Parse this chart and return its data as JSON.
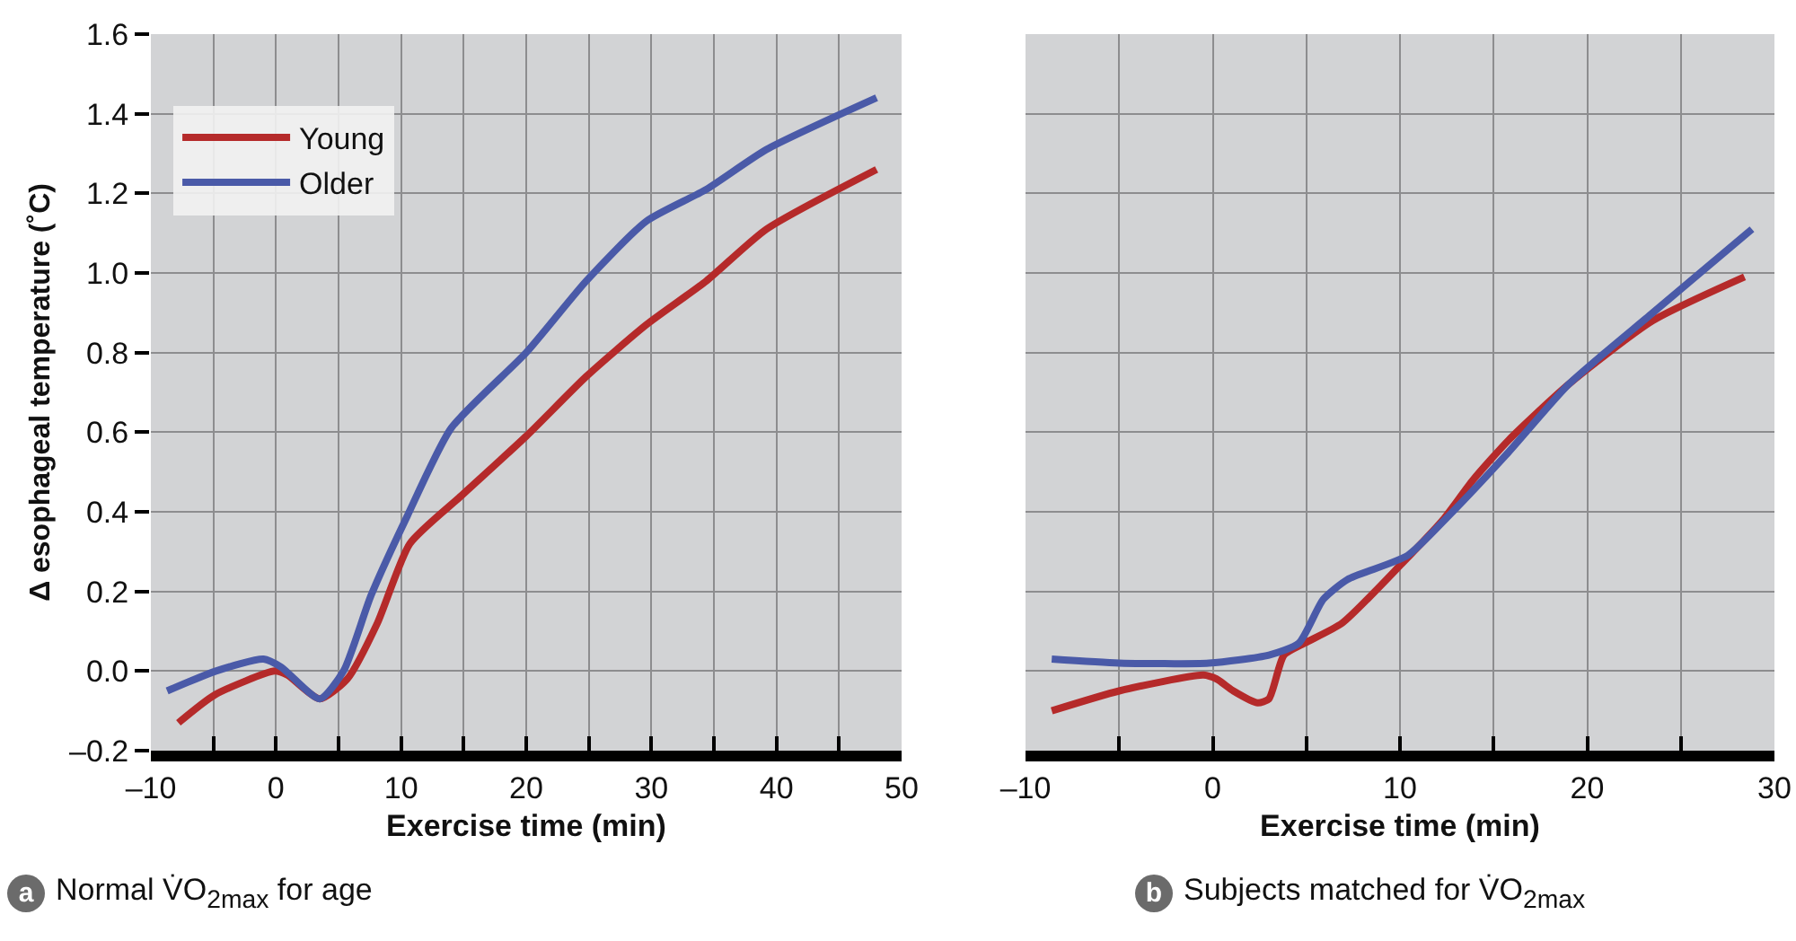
{
  "chart_data": [
    {
      "type": "line",
      "xlabel": "Exercise time (min)",
      "ylabel": "Δ esophageal temperature (˚C)",
      "xlim": [
        -10,
        50
      ],
      "ylim": [
        -0.2,
        1.6
      ],
      "xticks": [
        {
          "value": -10,
          "label": "–10"
        },
        {
          "value": -5,
          "label": null
        },
        0,
        {
          "value": 5,
          "label": null
        },
        10,
        {
          "value": 15,
          "label": null
        },
        20,
        {
          "value": 25,
          "label": null
        },
        30,
        {
          "value": 35,
          "label": null
        },
        40,
        {
          "value": 45,
          "label": null
        },
        50
      ],
      "yticks": [
        {
          "value": -0.2,
          "label": "–0.2"
        },
        {
          "value": 0,
          "label": "0.0"
        },
        0.2,
        0.4,
        0.6,
        0.8,
        {
          "value": 1,
          "label": "1.0"
        },
        1.2,
        1.4,
        1.6
      ],
      "grid": true,
      "legend": "top left",
      "series": [
        {
          "name": "Young",
          "color": "#b52a2a",
          "x": [
            -7.8,
            -4.9,
            -0.1,
            0.9,
            3.5,
            5.7,
            8.1,
            10.7,
            14.8,
            20,
            24.8,
            29.6,
            34.4,
            39.2,
            48
          ],
          "values": [
            -0.13,
            -0.06,
            0,
            -0.01,
            -0.07,
            -0.02,
            0.12,
            0.32,
            0.44,
            0.59,
            0.74,
            0.87,
            0.98,
            1.11,
            1.26
          ]
        },
        {
          "name": "Older",
          "color": "#4a5aa8",
          "x": [
            -8.7,
            -4.8,
            -1,
            0.4,
            3.5,
            5.4,
            7.6,
            10.5,
            14,
            20,
            24.8,
            29.6,
            34.4,
            39.2,
            48
          ],
          "values": [
            -0.05,
            0,
            0.03,
            0.01,
            -0.07,
            0,
            0.19,
            0.39,
            0.61,
            0.8,
            0.98,
            1.13,
            1.21,
            1.31,
            1.44
          ]
        }
      ],
      "annotations": [
        "a",
        "Normal V̇O$_{2max}$ for age"
      ]
    },
    {
      "type": "line",
      "xlabel": "Exercise time (min)",
      "xlim": [
        -10,
        30
      ],
      "ylim": [
        -0.2,
        1.6
      ],
      "xticks": [
        {
          "value": -10,
          "label": "–10"
        },
        {
          "value": -5,
          "label": null
        },
        0,
        {
          "value": 5,
          "label": null
        },
        10,
        {
          "value": 15,
          "label": null
        },
        20,
        {
          "value": 25,
          "label": null
        },
        30
      ],
      "yticks": [
        -0.2,
        0,
        0.2,
        0.4,
        0.6,
        0.8,
        1,
        1.2,
        1.4,
        1.6
      ],
      "grid": true,
      "tick_labels": "x",
      "series": [
        {
          "color": "#b52a2a",
          "x": [
            -8.6,
            -5,
            -0.5,
            0.2,
            1.1,
            2.4,
            3,
            3.8,
            4.9,
            6.9,
            10.1,
            12.3,
            13.9,
            15.8,
            19,
            23.5,
            28.4
          ],
          "values": [
            -0.1,
            -0.05,
            -0.01,
            -0.02,
            -0.05,
            -0.08,
            -0.07,
            0.04,
            0.07,
            0.12,
            0.27,
            0.38,
            0.48,
            0.58,
            0.72,
            0.88,
            0.99
          ]
        },
        {
          "color": "#4a5aa8",
          "x": [
            -8.6,
            -5,
            -0.2,
            3,
            4.6,
            5.9,
            7.2,
            10.4,
            12.6,
            15.8,
            19,
            23.5,
            28.8
          ],
          "values": [
            0.03,
            0.02,
            0.02,
            0.04,
            0.07,
            0.18,
            0.23,
            0.29,
            0.39,
            0.55,
            0.72,
            0.9,
            1.11
          ]
        }
      ],
      "annotations": [
        "b",
        "Subjects matched for V̇O$_{2max}$"
      ]
    }
  ]
}
